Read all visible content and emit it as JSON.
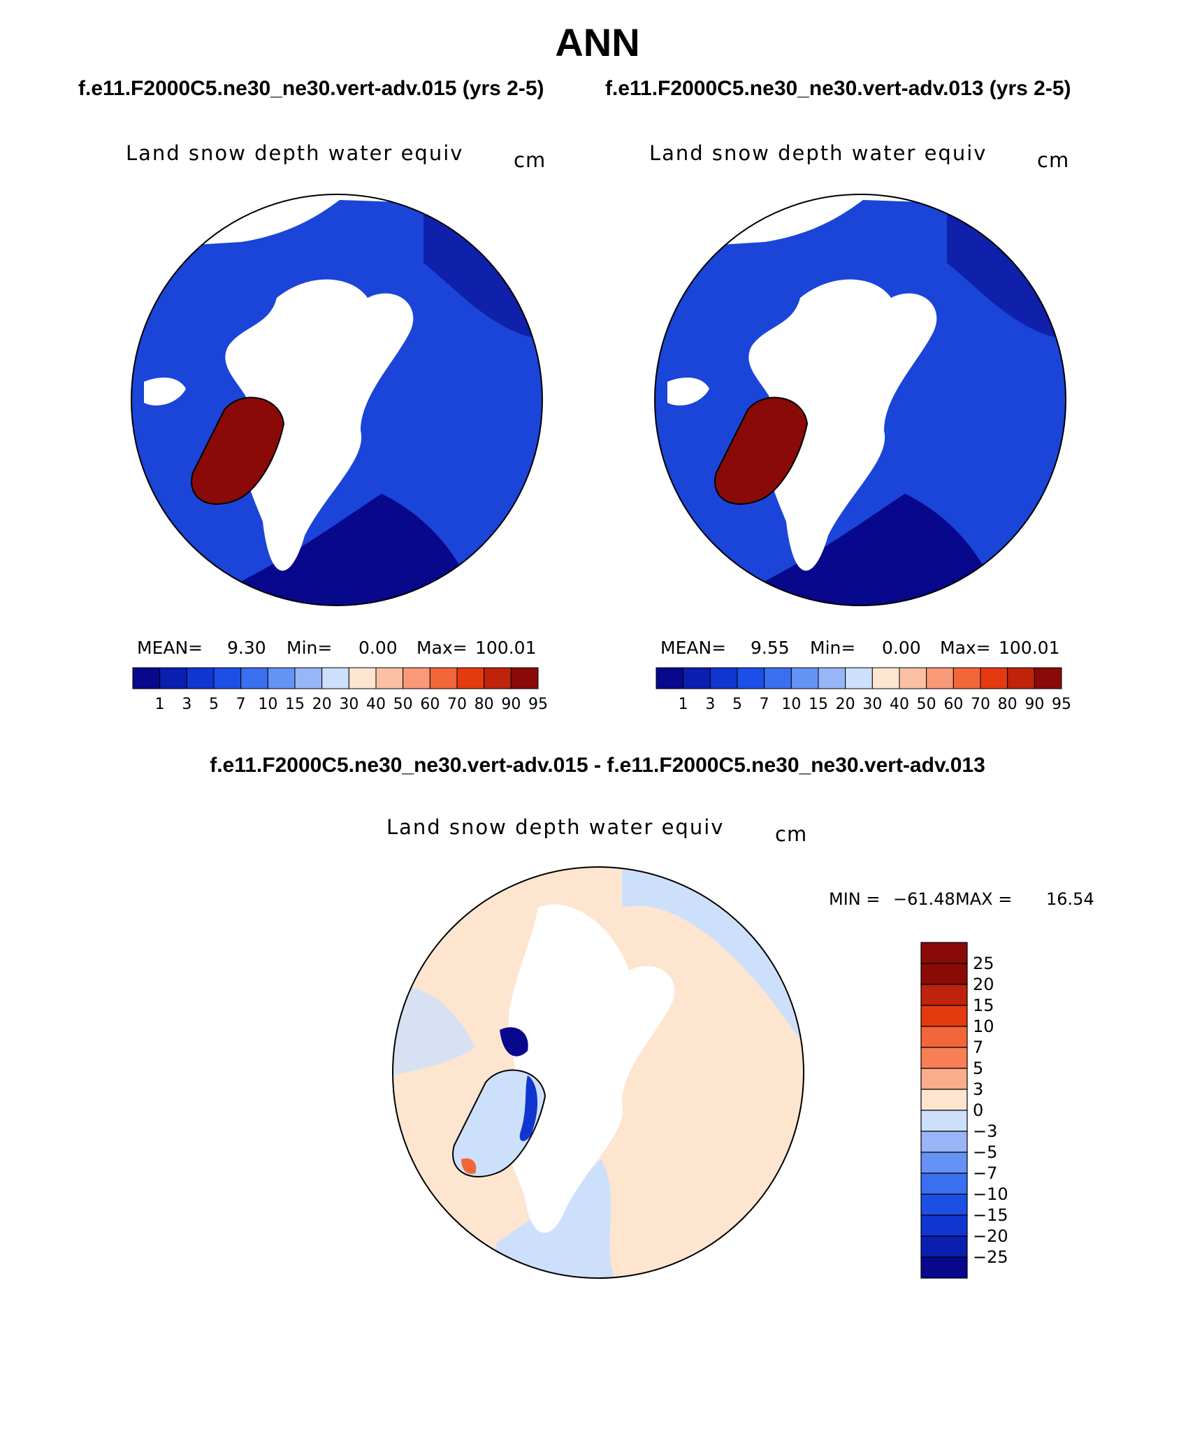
{
  "page": {
    "title": "ANN",
    "case_left": "f.e11.F2000C5.ne30_ne30.vert-adv.015 (yrs 2-5)",
    "case_right": "f.e11.F2000C5.ne30_ne30.vert-adv.013 (yrs 2-5)",
    "diff_title": "f.e11.F2000C5.ne30_ne30.vert-adv.015 - f.e11.F2000C5.ne30_ne30.vert-adv.013"
  },
  "panels": [
    {
      "variable": "Land snow depth water equiv",
      "units": "cm",
      "mean_label": "MEAN=",
      "mean": "9.30",
      "min_label": "Min=",
      "min": "0.00",
      "max_label": "Max=",
      "max": "100.01"
    },
    {
      "variable": "Land snow depth water equiv",
      "units": "cm",
      "mean_label": "MEAN=",
      "mean": "9.55",
      "min_label": "Min=",
      "min": "0.00",
      "max_label": "Max=",
      "max": "100.01"
    }
  ],
  "diff_panel": {
    "variable": "Land snow depth water equiv",
    "units": "cm",
    "min_label": "MIN =",
    "min": "−61.48",
    "max_label": "MAX =",
    "max": "16.54"
  },
  "colorbar_abs": {
    "labels": [
      "1",
      "3",
      "5",
      "7",
      "10",
      "15",
      "20",
      "30",
      "40",
      "50",
      "60",
      "70",
      "80",
      "90",
      "95"
    ],
    "colors": [
      "#08088c",
      "#0a1fb0",
      "#1035d0",
      "#1d4ee6",
      "#3a6ff0",
      "#6492f5",
      "#98b6f7",
      "#cde0fb",
      "#fde5cf",
      "#fbc0a3",
      "#f89a78",
      "#f3663a",
      "#e43a0f",
      "#bf230a",
      "#8a0a07"
    ]
  },
  "colorbar_diff": {
    "labels": [
      "25",
      "20",
      "15",
      "10",
      "7",
      "5",
      "3",
      "0",
      "−3",
      "−5",
      "−7",
      "−10",
      "−15",
      "−20",
      "−25"
    ],
    "colors": [
      "#8a0a07",
      "#bf230a",
      "#e43a0f",
      "#f3663a",
      "#f87f55",
      "#fbac8c",
      "#fde5cf",
      "#cde0fb",
      "#98b6f7",
      "#6492f5",
      "#3a6ff0",
      "#1d4ee6",
      "#1035d0",
      "#0a1fb0",
      "#08088c"
    ]
  },
  "colors": {
    "snow_high": "#8a0a07",
    "snow_mid": "#1a45d8",
    "snow_low": "#08088c",
    "diff_pos": "#fde5cf",
    "diff_neg": "#cde0fb"
  }
}
